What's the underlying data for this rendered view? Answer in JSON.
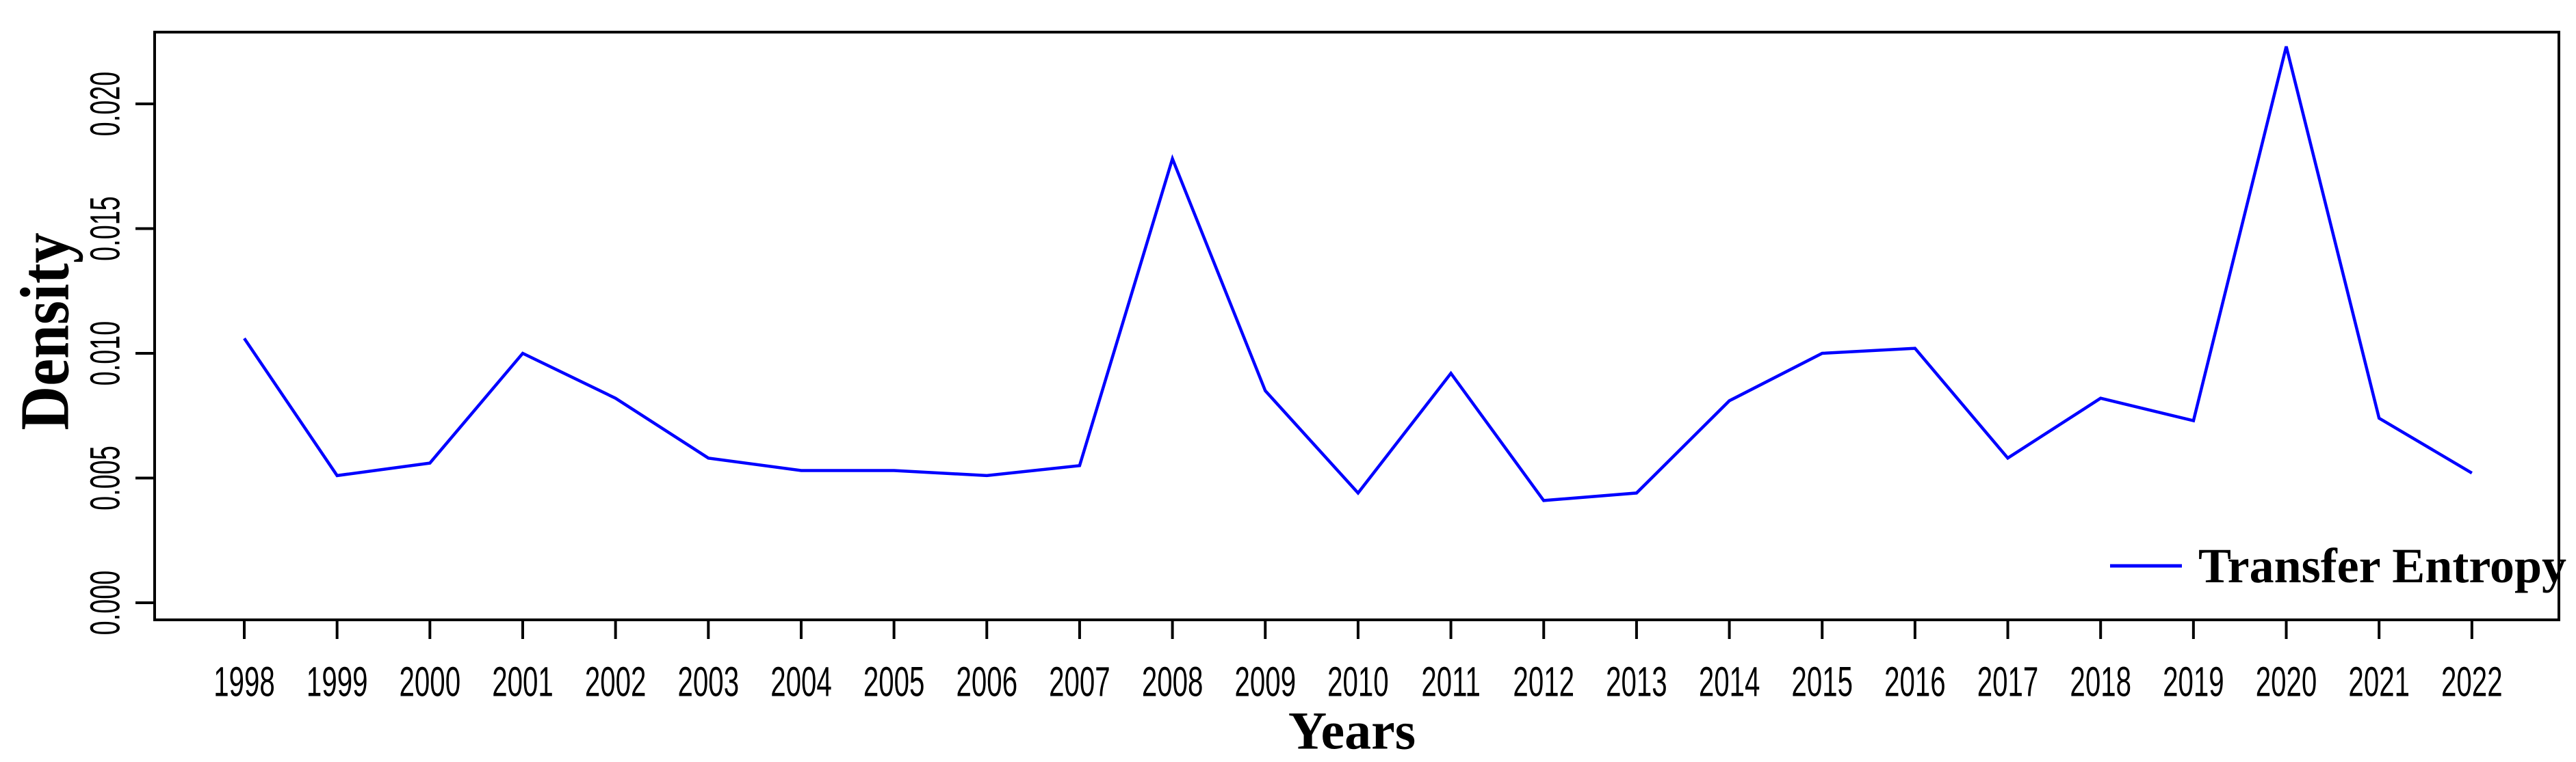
{
  "chart_data": {
    "type": "line",
    "title": "",
    "xlabel": "Years",
    "ylabel": "Density",
    "x": [
      1998,
      1999,
      2000,
      2001,
      2002,
      2003,
      2004,
      2005,
      2006,
      2007,
      2008,
      2009,
      2010,
      2011,
      2012,
      2013,
      2014,
      2015,
      2016,
      2017,
      2018,
      2019,
      2020,
      2021,
      2022
    ],
    "series": [
      {
        "name": "Transfer Entropy",
        "color": "#0000ff",
        "values": [
          0.0106,
          0.0051,
          0.0056,
          0.01,
          0.0082,
          0.0058,
          0.0053,
          0.0053,
          0.0051,
          0.0055,
          0.0178,
          0.0085,
          0.0044,
          0.0092,
          0.0041,
          0.0044,
          0.0081,
          0.01,
          0.0102,
          0.0058,
          0.0082,
          0.0073,
          0.0223,
          0.0074,
          0.0052
        ]
      }
    ],
    "y_ticks": [
      "0.000",
      "0.005",
      "0.010",
      "0.015",
      "0.020"
    ],
    "y_tick_values": [
      0.0,
      0.005,
      0.01,
      0.015,
      0.02
    ],
    "ylim": [
      -0.0007,
      0.0231
    ],
    "xlim": [
      1997,
      2023
    ],
    "grid": false,
    "legend_position": "bottom-right",
    "colors": {
      "line": "#0000ff",
      "axis": "#000000",
      "text": "#000000",
      "background": "#ffffff"
    }
  }
}
